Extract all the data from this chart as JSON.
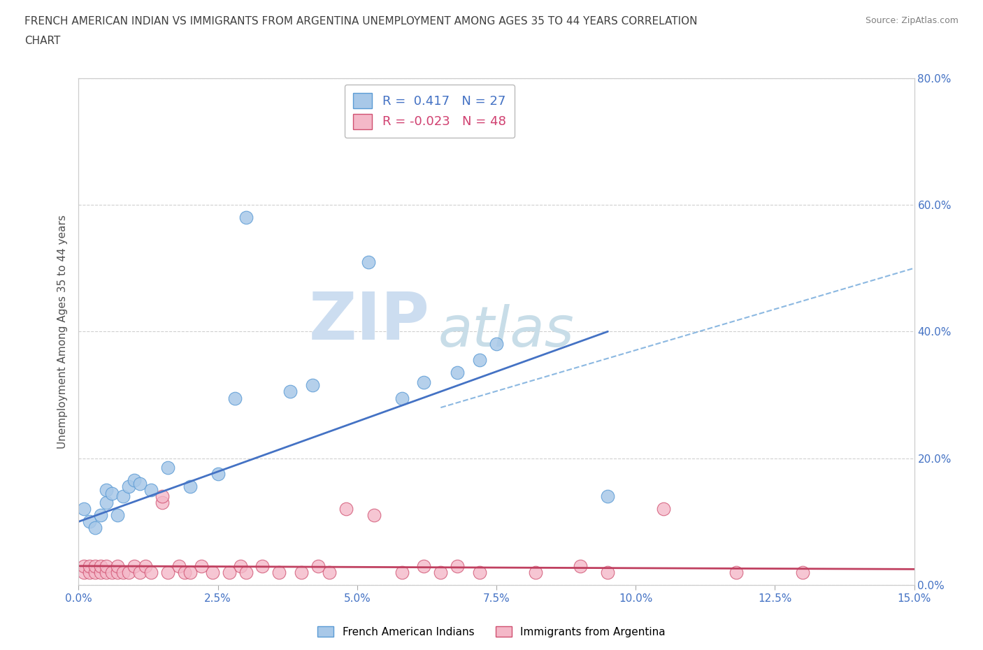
{
  "title_line1": "FRENCH AMERICAN INDIAN VS IMMIGRANTS FROM ARGENTINA UNEMPLOYMENT AMONG AGES 35 TO 44 YEARS CORRELATION",
  "title_line2": "CHART",
  "source_text": "Source: ZipAtlas.com",
  "ylabel": "Unemployment Among Ages 35 to 44 years",
  "xlim": [
    0.0,
    0.15
  ],
  "ylim": [
    0.0,
    0.8
  ],
  "xtick_labels": [
    "0.0%",
    "2.5%",
    "5.0%",
    "7.5%",
    "10.0%",
    "12.5%",
    "15.0%"
  ],
  "xtick_values": [
    0.0,
    0.025,
    0.05,
    0.075,
    0.1,
    0.125,
    0.15
  ],
  "ytick_labels": [
    "0.0%",
    "20.0%",
    "40.0%",
    "60.0%",
    "80.0%"
  ],
  "ytick_values": [
    0.0,
    0.2,
    0.4,
    0.6,
    0.8
  ],
  "blue_color": "#a8c8e8",
  "blue_edge_color": "#5b9bd5",
  "pink_color": "#f4b8c8",
  "pink_edge_color": "#d05070",
  "blue_line_color": "#4472c4",
  "pink_line_color": "#c04060",
  "watermark_zip_color": "#ccddf0",
  "watermark_atlas_color": "#c8dde8",
  "blue_scatter_x": [
    0.001,
    0.002,
    0.003,
    0.004,
    0.005,
    0.005,
    0.006,
    0.007,
    0.008,
    0.009,
    0.01,
    0.011,
    0.013,
    0.016,
    0.02,
    0.025,
    0.028,
    0.03,
    0.038,
    0.042,
    0.052,
    0.058,
    0.062,
    0.068,
    0.072,
    0.075,
    0.095
  ],
  "blue_scatter_y": [
    0.12,
    0.1,
    0.09,
    0.11,
    0.13,
    0.15,
    0.145,
    0.11,
    0.14,
    0.155,
    0.165,
    0.16,
    0.15,
    0.185,
    0.155,
    0.175,
    0.295,
    0.58,
    0.305,
    0.315,
    0.51,
    0.295,
    0.32,
    0.335,
    0.355,
    0.38,
    0.14
  ],
  "pink_scatter_x": [
    0.001,
    0.001,
    0.002,
    0.002,
    0.003,
    0.003,
    0.004,
    0.004,
    0.005,
    0.005,
    0.006,
    0.007,
    0.007,
    0.008,
    0.009,
    0.01,
    0.011,
    0.012,
    0.013,
    0.015,
    0.015,
    0.016,
    0.018,
    0.019,
    0.02,
    0.022,
    0.024,
    0.027,
    0.029,
    0.03,
    0.033,
    0.036,
    0.04,
    0.043,
    0.045,
    0.048,
    0.053,
    0.058,
    0.062,
    0.065,
    0.068,
    0.072,
    0.082,
    0.09,
    0.095,
    0.105,
    0.118,
    0.13
  ],
  "pink_scatter_y": [
    0.02,
    0.03,
    0.02,
    0.03,
    0.02,
    0.03,
    0.02,
    0.03,
    0.02,
    0.03,
    0.02,
    0.02,
    0.03,
    0.02,
    0.02,
    0.03,
    0.02,
    0.03,
    0.02,
    0.13,
    0.14,
    0.02,
    0.03,
    0.02,
    0.02,
    0.03,
    0.02,
    0.02,
    0.03,
    0.02,
    0.03,
    0.02,
    0.02,
    0.03,
    0.02,
    0.12,
    0.11,
    0.02,
    0.03,
    0.02,
    0.03,
    0.02,
    0.02,
    0.03,
    0.02,
    0.12,
    0.02,
    0.02
  ],
  "blue_trend_x": [
    0.0,
    0.095
  ],
  "blue_trend_y": [
    0.1,
    0.4
  ],
  "pink_trend_x": [
    0.0,
    0.15
  ],
  "pink_trend_y": [
    0.03,
    0.025
  ],
  "pink_dashed_trend_x": [
    0.065,
    0.15
  ],
  "pink_dashed_trend_y": [
    0.28,
    0.5
  ],
  "background_color": "#ffffff",
  "grid_color": "#d0d0d0",
  "title_color": "#404040",
  "tick_color": "#4472c4"
}
